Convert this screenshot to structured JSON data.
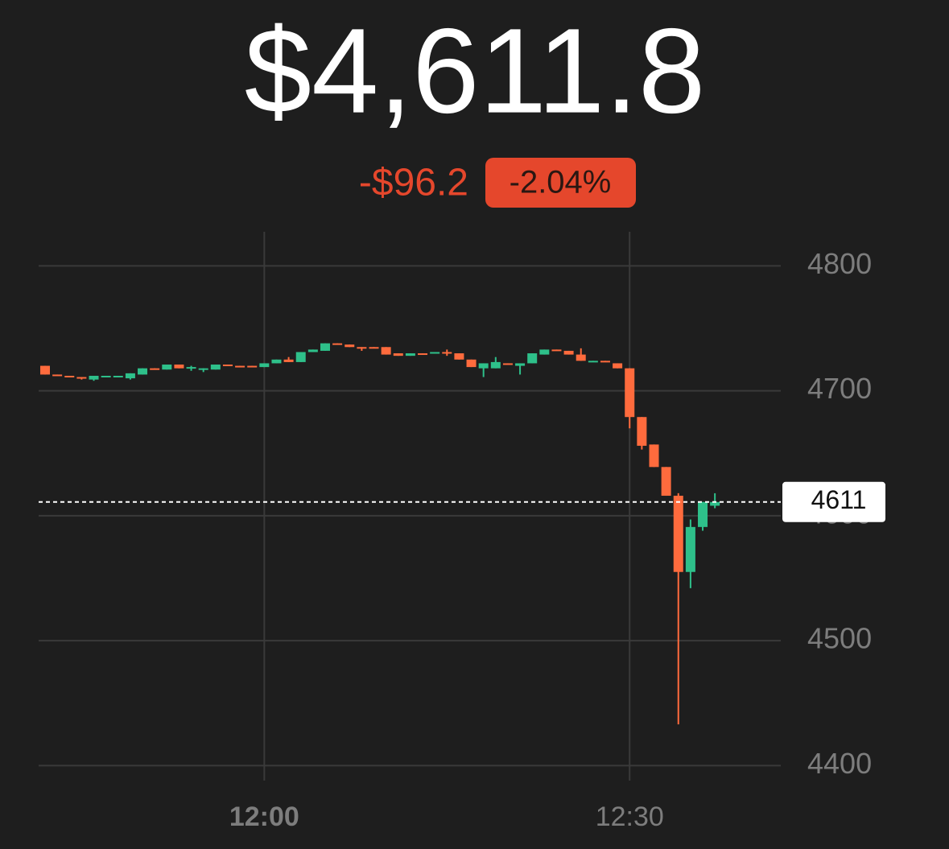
{
  "chart_data": {
    "type": "candlestick",
    "title": "$4,611.8",
    "change": "-$96.2",
    "change_percent": "-2.04%",
    "categories": [
      null,
      null,
      null,
      null,
      null,
      null,
      null,
      null,
      null,
      null,
      null,
      null,
      null,
      null,
      null,
      null,
      null,
      null,
      "12:00",
      null,
      null,
      null,
      null,
      null,
      null,
      null,
      null,
      null,
      null,
      null,
      null,
      null,
      null,
      null,
      null,
      null,
      null,
      null,
      null,
      null,
      null,
      null,
      null,
      null,
      null,
      null,
      null,
      null,
      "12:30",
      null,
      null,
      null,
      null,
      null,
      null,
      null
    ],
    "open": [
      4720,
      4713,
      4712,
      4711,
      4709,
      4711,
      4711,
      4710,
      4713,
      4718,
      4717,
      4721,
      4718,
      4717,
      4717,
      4721,
      4720,
      4720,
      4719,
      4722,
      4725,
      4723,
      4731,
      4732,
      4738,
      4737,
      4735,
      4735,
      4735,
      4730,
      4728,
      4730,
      4730,
      4731,
      4730,
      4725,
      4718,
      4718,
      4722,
      4720,
      4722,
      4729,
      4733,
      4732,
      4729,
      4723,
      4724,
      4722,
      4718,
      4679,
      4657,
      4639,
      4616,
      4555,
      4591,
      4608
    ],
    "high": [
      4720,
      4713,
      4712,
      4711,
      4712,
      4712,
      4712,
      4714,
      4718,
      4718,
      4721,
      4721,
      4720,
      4718,
      4721,
      4721,
      4720,
      4720,
      4722,
      4725,
      4727,
      4731,
      4733,
      4738,
      4738,
      4737,
      4735,
      4735,
      4735,
      4730,
      4730,
      4730,
      4731,
      4733,
      4730,
      4725,
      4722,
      4727,
      4722,
      4722,
      4730,
      4733,
      4733,
      4732,
      4734,
      4724,
      4724,
      4722,
      4718,
      4679,
      4657,
      4639,
      4618,
      4597,
      4611,
      4618
    ],
    "low": [
      4713,
      4712,
      4711,
      4709,
      4708,
      4711,
      4711,
      4709,
      4713,
      4717,
      4717,
      4718,
      4716,
      4715,
      4717,
      4720,
      4719,
      4719,
      4719,
      4722,
      4723,
      4723,
      4731,
      4732,
      4737,
      4735,
      4732,
      4734,
      4729,
      4728,
      4728,
      4729,
      4730,
      4728,
      4725,
      4719,
      4711,
      4718,
      4721,
      4713,
      4722,
      4729,
      4732,
      4729,
      4724,
      4723,
      4723,
      4718,
      4670,
      4653,
      4639,
      4616,
      4433,
      4542,
      4588,
      4606
    ],
    "close": [
      4713,
      4712,
      4711,
      4710,
      4712,
      4712,
      4712,
      4714,
      4718,
      4717,
      4721,
      4718,
      4719,
      4718,
      4721,
      4720,
      4719,
      4719,
      4722,
      4725,
      4723,
      4731,
      4733,
      4738,
      4737,
      4735,
      4734,
      4734,
      4729,
      4728,
      4730,
      4729,
      4731,
      4730,
      4725,
      4719,
      4722,
      4723,
      4721,
      4722,
      4730,
      4733,
      4732,
      4729,
      4724,
      4724,
      4723,
      4718,
      4679,
      4656,
      4639,
      4616,
      4555,
      4591,
      4611,
      4611
    ],
    "up_color": "#2ec08a",
    "down_color": "#ff6b3d",
    "ylim": [
      4388,
      4826
    ],
    "yticks": [
      4400,
      4500,
      4600,
      4700,
      4800
    ],
    "last_price": 4611,
    "grid": true
  }
}
